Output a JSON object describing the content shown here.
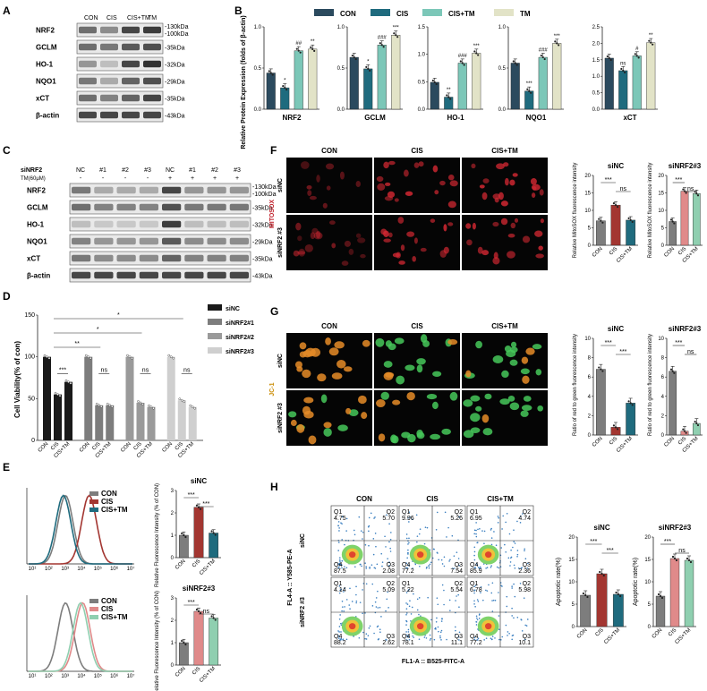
{
  "panels": {
    "A": "A",
    "B": "B",
    "C": "C",
    "D": "D",
    "E": "E",
    "F": "F",
    "G": "G",
    "H": "H"
  },
  "colors": {
    "con": "#2b4a5e",
    "cis": "#1f6b7e",
    "cistm": "#7cc7b8",
    "tm": "#e2e3c7",
    "gray": "#7d7d7d",
    "red": "#a33631",
    "mint": "#8fcfb0",
    "black": "#1a1a1a"
  },
  "panelA": {
    "columns": [
      "CON",
      "CIS",
      "CIS+TM",
      "TM"
    ],
    "rows": [
      {
        "name": "NRF2",
        "size": "130kDa",
        "size2": "100kDa"
      },
      {
        "name": "GCLM",
        "size": "35kDa"
      },
      {
        "name": "HO-1",
        "size": "32kDa"
      },
      {
        "name": "NQO1",
        "size": "29kDa"
      },
      {
        "name": "xCT",
        "size": "35kDa"
      },
      {
        "name": "β-actin",
        "size": "43kDa"
      }
    ]
  },
  "panelB": {
    "legend": [
      "CON",
      "CIS",
      "CIS+TM",
      "TM"
    ],
    "ylabel": "Relative Protein Expression (folds of β-actin)",
    "charts": [
      {
        "xlabel": "NRF2",
        "yticks": [
          "0.0",
          "0.5",
          "1.0"
        ],
        "ymax": 1.0,
        "values": [
          0.44,
          0.26,
          0.71,
          0.73
        ],
        "sig": [
          "",
          "*",
          "##",
          "**"
        ]
      },
      {
        "xlabel": "GCLM",
        "yticks": [
          "0.0",
          "0.5",
          "1.0"
        ],
        "ymax": 1.0,
        "values": [
          0.63,
          0.49,
          0.78,
          0.9
        ],
        "sig": [
          "",
          "*",
          "###",
          "***"
        ]
      },
      {
        "xlabel": "HO-1",
        "yticks": [
          "0.0",
          "0.5",
          "1.0",
          "1.5"
        ],
        "ymax": 1.5,
        "values": [
          0.49,
          0.22,
          0.84,
          1.02
        ],
        "sig": [
          "",
          "**",
          "###",
          "***"
        ]
      },
      {
        "xlabel": "NQO1",
        "yticks": [
          "0.0",
          "0.5",
          "1.0"
        ],
        "ymax": 1.0,
        "values": [
          0.56,
          0.22,
          0.63,
          0.8
        ],
        "sig": [
          "",
          "***",
          "###",
          "***"
        ]
      },
      {
        "xlabel": "xCT",
        "yticks": [
          "0.0",
          "0.5",
          "1.0",
          "1.5",
          "2.0",
          "2.5"
        ],
        "ymax": 2.5,
        "values": [
          1.55,
          1.17,
          1.62,
          2.02
        ],
        "sig": [
          "",
          "ns",
          "#",
          "**"
        ]
      }
    ]
  },
  "panelC": {
    "row1label": "siNRF2",
    "row2label": "TM(60μM)",
    "lanes": [
      "NC",
      "#1",
      "#2",
      "#3",
      "NC",
      "#1",
      "#2",
      "#3"
    ],
    "tm": [
      "-",
      "-",
      "-",
      "-",
      "+",
      "+",
      "+",
      "+"
    ],
    "rows": [
      {
        "name": "NRF2",
        "size": "130kDa",
        "size2": "100kDa"
      },
      {
        "name": "GCLM",
        "size": "35kDa"
      },
      {
        "name": "HO-1",
        "size": "32kDa"
      },
      {
        "name": "NQO1",
        "size": "29kDa"
      },
      {
        "name": "xCT",
        "size": "35kDa"
      },
      {
        "name": "β-actin",
        "size": "43kDa"
      }
    ]
  },
  "panelD": {
    "ylabel": "Cell Viability(% of con)",
    "yticks": [
      "0",
      "50",
      "100",
      "150"
    ],
    "ymax": 150,
    "groups": [
      "siNC",
      "siNRF2#1",
      "siNRF2#2",
      "siNRF2#3"
    ],
    "xlabels": [
      "CON",
      "CIS",
      "CIS+TM"
    ],
    "values": [
      [
        100,
        55,
        70
      ],
      [
        100,
        42,
        42
      ],
      [
        100,
        45,
        40
      ],
      [
        100,
        48,
        40
      ]
    ],
    "sig": [
      [
        "***"
      ],
      [
        "ns"
      ],
      [
        "ns"
      ],
      [
        "ns"
      ]
    ],
    "topsig": [
      "*",
      "*",
      "**"
    ],
    "legend": [
      "siNC",
      "siNRF2#1",
      "siNRF2#2",
      "siNRF2#3"
    ]
  },
  "panelE": {
    "legend": [
      "CON",
      "CIS",
      "CIS+TM"
    ],
    "histTicks": [
      "10¹",
      "10²",
      "10³",
      "10⁴",
      "10⁵",
      "10⁶",
      "10⁷"
    ],
    "charts": [
      {
        "title": "siNC",
        "yticks": [
          "0",
          "1",
          "2",
          "3"
        ],
        "ymax": 3,
        "values": [
          1.0,
          2.25,
          1.1
        ],
        "sig": [
          "***",
          "***"
        ]
      },
      {
        "title": "siNRF2#3",
        "yticks": [
          "0",
          "1",
          "2",
          "3"
        ],
        "ymax": 3,
        "values": [
          1.0,
          2.4,
          2.1
        ],
        "sig": [
          "***",
          "ns"
        ]
      }
    ],
    "ylabel": "Relative Fluorescence Intensity (% of CON)",
    "xlabels": [
      "CON",
      "CIS",
      "CIS+TM"
    ]
  },
  "panelF": {
    "cols": [
      "CON",
      "CIS",
      "CIS+TM"
    ],
    "rows": [
      "siNC",
      "siNRF2 #3"
    ],
    "stain": "MITOSOX",
    "charts": [
      {
        "title": "siNC",
        "yticks": [
          "0",
          "5",
          "10",
          "15",
          "20"
        ],
        "ymax": 20,
        "values": [
          7,
          11.5,
          7.2
        ],
        "sig": [
          "***",
          "ns"
        ]
      },
      {
        "title": "siNRF2#3",
        "yticks": [
          "0",
          "5",
          "10",
          "15",
          "20"
        ],
        "ymax": 20,
        "values": [
          6.8,
          15.5,
          14.8
        ],
        "sig": [
          "***",
          "ns"
        ]
      }
    ],
    "ylabel": "Relative MitoSOX fluorescence intensity",
    "xlabels": [
      "CON",
      "CIS",
      "CIS+TM"
    ]
  },
  "panelG": {
    "cols": [
      "CON",
      "CIS",
      "CIS+TM"
    ],
    "rows": [
      "siNC",
      "siNRF2 #3"
    ],
    "stain": "JC-1",
    "charts": [
      {
        "title": "siNC",
        "yticks": [
          "0",
          "2",
          "4",
          "6",
          "8",
          "10"
        ],
        "ymax": 10,
        "values": [
          6.8,
          0.8,
          3.3
        ],
        "sig": [
          "***",
          "***"
        ]
      },
      {
        "title": "siNRF2#3",
        "yticks": [
          "0",
          "2",
          "4",
          "6",
          "8",
          "10"
        ],
        "ymax": 10,
        "values": [
          6.6,
          0.4,
          1.2
        ],
        "sig": [
          "***",
          "ns"
        ]
      }
    ],
    "ylabel": "Ratio of red to green fluorescence intensity",
    "xlabels": [
      "CON",
      "CIS",
      "CIS+TM"
    ]
  },
  "panelH": {
    "cols": [
      "CON",
      "CIS",
      "CIS+TM"
    ],
    "rows": [
      "siNC",
      "siNRF2 #3"
    ],
    "yaxis": "FL4-A :: Y585-PE-A",
    "xaxis": "FL1-A :: B525-FITC-A",
    "quads": [
      [
        [
          "4.75",
          "5.70",
          "87.5",
          "2.08"
        ],
        [
          "9.96",
          "5.26",
          "77.2",
          "7.54"
        ],
        [
          "6.95",
          "4.74",
          "85.9",
          "2.36"
        ]
      ],
      [
        [
          "4.14",
          "5.09",
          "88.2",
          "2.62"
        ],
        [
          "5.22",
          "5.54",
          "78.1",
          "11.1"
        ],
        [
          "6.78",
          "5.98",
          "77.2",
          "10.1"
        ]
      ]
    ],
    "qnames": [
      "Q1",
      "Q2",
      "Q4",
      "Q3"
    ],
    "charts": [
      {
        "title": "siNC",
        "yticks": [
          "0",
          "5",
          "10",
          "15",
          "20"
        ],
        "ymax": 20,
        "values": [
          7,
          11.8,
          7.2
        ],
        "sig": [
          "***",
          "***"
        ]
      },
      {
        "title": "siNRF2#3",
        "yticks": [
          "0",
          "5",
          "10",
          "15",
          "20"
        ],
        "ymax": 20,
        "values": [
          6.8,
          15.2,
          14.8
        ],
        "sig": [
          "***",
          "ns"
        ]
      }
    ],
    "ylabel": "Apoptotic rate(%)",
    "xlabels": [
      "CON",
      "CIS",
      "CIS+TM"
    ]
  }
}
